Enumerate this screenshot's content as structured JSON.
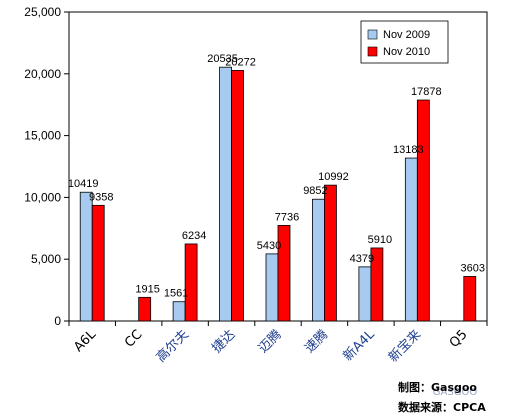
{
  "chart_data": {
    "type": "bar",
    "categories": [
      "A6L",
      "CC",
      "高尔夫",
      "捷达",
      "迈腾",
      "速腾",
      "新A4L",
      "新宝来",
      "Q5"
    ],
    "series": [
      {
        "name": "Nov 2009",
        "values": [
          10419,
          null,
          1561,
          20535,
          5430,
          9852,
          4379,
          13183,
          null
        ],
        "color": "#a6caf0"
      },
      {
        "name": "Nov 2010",
        "values": [
          9358,
          1915,
          6234,
          20272,
          7736,
          10992,
          5910,
          17878,
          3603
        ],
        "color": "#ff0000"
      }
    ],
    "y_ticks": [
      "0",
      "5,000",
      "10,000",
      "15,000",
      "20,000",
      "25,000"
    ],
    "ylim": [
      0,
      25000
    ],
    "grid": false,
    "legend_position": "top-right",
    "title": "",
    "xlabel": "",
    "ylabel": ""
  },
  "credits": {
    "maker": "制图：Gasgoo",
    "source": "数据来源：CPCA"
  },
  "watermark": "GASGOO"
}
